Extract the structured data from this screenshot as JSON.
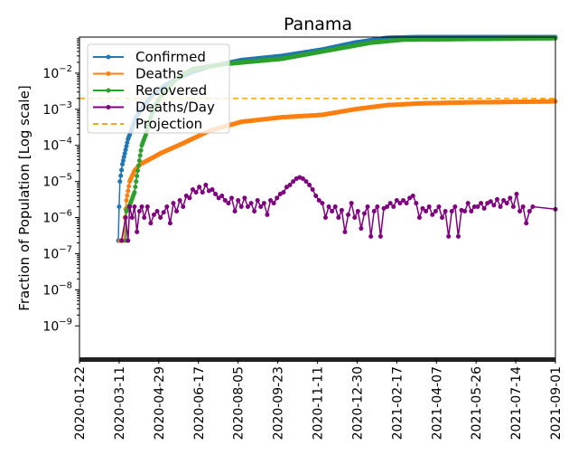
{
  "chart_data": {
    "type": "line",
    "title": "Panama",
    "xlabel": "",
    "ylabel": "Fraction of Population [Log scale]",
    "yscale": "log",
    "ylim": [
      1.2e-10,
      0.1
    ],
    "x_start_date": "2020-01-22",
    "xlim_days": [
      0,
      588
    ],
    "x_tick_labels": [
      "2020-01-22",
      "2020-03-11",
      "2020-04-29",
      "2020-06-17",
      "2020-08-05",
      "2020-09-23",
      "2020-11-11",
      "2020-12-30",
      "2021-02-17",
      "2021-04-07",
      "2021-05-26",
      "2021-07-14",
      "2021-09-01"
    ],
    "y_tick_labels": [
      {
        "base": "10",
        "exp": "−2",
        "value": 0.01
      },
      {
        "base": "10",
        "exp": "−3",
        "value": 0.001
      },
      {
        "base": "10",
        "exp": "−4",
        "value": 0.0001
      },
      {
        "base": "10",
        "exp": "−5",
        "value": 1e-05
      },
      {
        "base": "10",
        "exp": "−6",
        "value": 1e-06
      },
      {
        "base": "10",
        "exp": "−7",
        "value": 1e-07
      },
      {
        "base": "10",
        "exp": "−8",
        "value": 1e-08
      },
      {
        "base": "10",
        "exp": "−9",
        "value": 1e-09
      }
    ],
    "legend_position": "top-left",
    "series": [
      {
        "name": "Confirmed",
        "color": "#1f77b4",
        "style": "line-marker",
        "points": [
          [
            48,
            2.3e-07
          ],
          [
            49,
            2e-06
          ],
          [
            50,
            1e-05
          ],
          [
            53,
            3e-05
          ],
          [
            56,
            6e-05
          ],
          [
            60,
            0.00015
          ],
          [
            65,
            0.0003
          ],
          [
            70,
            0.0006
          ],
          [
            80,
            0.0013
          ],
          [
            90,
            0.0025
          ],
          [
            105,
            0.0045
          ],
          [
            120,
            0.007
          ],
          [
            140,
            0.011
          ],
          [
            160,
            0.015
          ],
          [
            200,
            0.023
          ],
          [
            250,
            0.03
          ],
          [
            300,
            0.045
          ],
          [
            340,
            0.07
          ],
          [
            380,
            0.095
          ],
          [
            420,
            0.1
          ],
          [
            588,
            0.1
          ]
        ]
      },
      {
        "name": "Deaths",
        "color": "#ff7f0e",
        "style": "line-marker",
        "points": [
          [
            50,
            2.3e-07
          ],
          [
            55,
            2.3e-07
          ],
          [
            56,
            1e-06
          ],
          [
            58,
            3e-06
          ],
          [
            62,
            1e-05
          ],
          [
            68,
            2e-05
          ],
          [
            75,
            3e-05
          ],
          [
            90,
            4.5e-05
          ],
          [
            100,
            6e-05
          ],
          [
            130,
            0.00012
          ],
          [
            160,
            0.00025
          ],
          [
            200,
            0.00045
          ],
          [
            250,
            0.0006
          ],
          [
            300,
            0.0007
          ],
          [
            340,
            0.001
          ],
          [
            380,
            0.0013
          ],
          [
            420,
            0.00145
          ],
          [
            480,
            0.00155
          ],
          [
            588,
            0.00165
          ]
        ]
      },
      {
        "name": "Recovered",
        "color": "#2ca02c",
        "style": "line-marker",
        "points": [
          [
            57,
            2.3e-07
          ],
          [
            58,
            1.5e-06
          ],
          [
            63,
            2.5e-06
          ],
          [
            68,
            5e-06
          ],
          [
            72,
            2e-05
          ],
          [
            77,
            0.0001
          ],
          [
            82,
            0.0002
          ],
          [
            88,
            0.0006
          ],
          [
            95,
            0.0015
          ],
          [
            105,
            0.003
          ],
          [
            120,
            0.007
          ],
          [
            140,
            0.013
          ],
          [
            180,
            0.018
          ],
          [
            250,
            0.025
          ],
          [
            300,
            0.04
          ],
          [
            360,
            0.07
          ],
          [
            400,
            0.085
          ],
          [
            588,
            0.093
          ]
        ]
      },
      {
        "name": "Deaths/Day",
        "color": "#800080",
        "style": "line-marker",
        "points": [
          [
            52,
            2.3e-07
          ],
          [
            57,
            1e-06
          ],
          [
            60,
            2.3e-07
          ],
          [
            62,
            2e-06
          ],
          [
            65,
            1e-06
          ],
          [
            68,
            2e-06
          ],
          [
            71,
            4e-07
          ],
          [
            74,
            1.5e-06
          ],
          [
            77,
            2e-06
          ],
          [
            80,
            1e-06
          ],
          [
            84,
            2e-06
          ],
          [
            88,
            7e-07
          ],
          [
            92,
            1.2e-06
          ],
          [
            96,
            1.5e-06
          ],
          [
            100,
            1e-06
          ],
          [
            104,
            1.4e-06
          ],
          [
            108,
            2e-06
          ],
          [
            112,
            7e-07
          ],
          [
            116,
            2.5e-06
          ],
          [
            120,
            1.5e-06
          ],
          [
            124,
            3e-06
          ],
          [
            128,
            2e-06
          ],
          [
            132,
            4e-06
          ],
          [
            136,
            3.5e-06
          ],
          [
            140,
            6e-06
          ],
          [
            144,
            5e-06
          ],
          [
            148,
            7e-06
          ],
          [
            152,
            5e-06
          ],
          [
            156,
            8e-06
          ],
          [
            160,
            5.5e-06
          ],
          [
            164,
            6e-06
          ],
          [
            168,
            4.5e-06
          ],
          [
            172,
            3.5e-06
          ],
          [
            176,
            4e-06
          ],
          [
            180,
            3e-06
          ],
          [
            184,
            2.5e-06
          ],
          [
            188,
            3.5e-06
          ],
          [
            192,
            1.5e-06
          ],
          [
            196,
            3e-06
          ],
          [
            200,
            2e-06
          ],
          [
            204,
            3.5e-06
          ],
          [
            208,
            2e-06
          ],
          [
            212,
            2.5e-06
          ],
          [
            216,
            1.5e-06
          ],
          [
            220,
            3e-06
          ],
          [
            224,
            2e-06
          ],
          [
            228,
            2.5e-06
          ],
          [
            232,
            1.2e-06
          ],
          [
            236,
            3e-06
          ],
          [
            240,
            2.5e-06
          ],
          [
            244,
            3.5e-06
          ],
          [
            248,
            4.5e-06
          ],
          [
            252,
            5e-06
          ],
          [
            256,
            7e-06
          ],
          [
            260,
            8e-06
          ],
          [
            264,
            1e-05
          ],
          [
            268,
            1.2e-05
          ],
          [
            272,
            1.3e-05
          ],
          [
            276,
            1.2e-05
          ],
          [
            280,
            1e-05
          ],
          [
            284,
            8e-06
          ],
          [
            288,
            6e-06
          ],
          [
            292,
            4e-06
          ],
          [
            296,
            3e-06
          ],
          [
            300,
            2.5e-06
          ],
          [
            304,
            1e-06
          ],
          [
            308,
            2e-06
          ],
          [
            312,
            1.5e-06
          ],
          [
            316,
            2e-06
          ],
          [
            320,
            1e-06
          ],
          [
            324,
            1.6e-06
          ],
          [
            328,
            4e-07
          ],
          [
            332,
            1.2e-06
          ],
          [
            336,
            2.5e-06
          ],
          [
            340,
            1e-06
          ],
          [
            344,
            1.5e-06
          ],
          [
            348,
            5e-07
          ],
          [
            352,
            1.3e-06
          ],
          [
            356,
            2e-06
          ],
          [
            360,
            3e-07
          ],
          [
            364,
            1.5e-06
          ],
          [
            368,
            2e-06
          ],
          [
            372,
            3e-07
          ],
          [
            376,
            1.8e-06
          ],
          [
            380,
            2e-06
          ],
          [
            384,
            2.5e-06
          ],
          [
            388,
            2e-06
          ],
          [
            392,
            3e-06
          ],
          [
            396,
            2.5e-06
          ],
          [
            400,
            3e-06
          ],
          [
            404,
            2.5e-06
          ],
          [
            408,
            3.5e-06
          ],
          [
            412,
            4e-06
          ],
          [
            416,
            2.5e-06
          ],
          [
            420,
            1e-06
          ],
          [
            424,
            1.8e-06
          ],
          [
            428,
            1.5e-06
          ],
          [
            432,
            2e-06
          ],
          [
            436,
            1.2e-06
          ],
          [
            440,
            1.5e-06
          ],
          [
            444,
            2e-06
          ],
          [
            448,
            1e-06
          ],
          [
            452,
            1.5e-06
          ],
          [
            456,
            3e-07
          ],
          [
            460,
            1.5e-06
          ],
          [
            464,
            2e-06
          ],
          [
            468,
            3e-07
          ],
          [
            472,
            1.6e-06
          ],
          [
            476,
            1.5e-06
          ],
          [
            480,
            2.5e-06
          ],
          [
            484,
            1.5e-06
          ],
          [
            488,
            2e-06
          ],
          [
            492,
            2e-06
          ],
          [
            496,
            2.5e-06
          ],
          [
            500,
            1.8e-06
          ],
          [
            504,
            2.5e-06
          ],
          [
            508,
            2.8e-06
          ],
          [
            512,
            2.2e-06
          ],
          [
            516,
            3.2e-06
          ],
          [
            520,
            2e-06
          ],
          [
            524,
            3e-06
          ],
          [
            528,
            2.5e-06
          ],
          [
            532,
            3.5e-06
          ],
          [
            536,
            2e-06
          ],
          [
            540,
            4.5e-06
          ],
          [
            544,
            1.5e-06
          ],
          [
            548,
            2e-06
          ],
          [
            552,
            7e-07
          ],
          [
            556,
            1.5e-06
          ],
          [
            560,
            2e-06
          ],
          [
            588,
            1.7e-06
          ]
        ]
      },
      {
        "name": "Projection",
        "color": "#ffa500",
        "style": "dashed",
        "points": [
          [
            0,
            0.002
          ],
          [
            588,
            0.002
          ]
        ]
      }
    ]
  }
}
